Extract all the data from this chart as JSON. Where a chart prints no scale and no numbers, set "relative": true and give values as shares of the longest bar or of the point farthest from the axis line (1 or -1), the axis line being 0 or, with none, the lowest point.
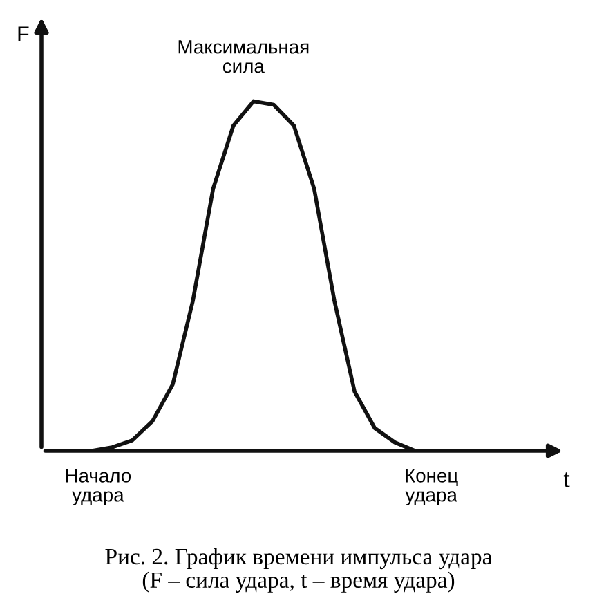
{
  "chart_data": {
    "type": "line",
    "relative": true,
    "xlabel": "t",
    "ylabel": "F",
    "color": "#111111",
    "grid": false,
    "legend": false,
    "marker": "none",
    "line_style": "solid",
    "categories": [
      null,
      null,
      null,
      null,
      null,
      null,
      null,
      null,
      null,
      null,
      null,
      null,
      null,
      null,
      null,
      null,
      null,
      null,
      null,
      null,
      null,
      null,
      null,
      null,
      null,
      null
    ],
    "values": [
      null,
      null,
      0,
      0.01,
      0.03,
      0.085,
      0.19,
      0.43,
      0.75,
      0.93,
      1.0,
      0.99,
      0.93,
      0.75,
      0.43,
      0.17,
      0.065,
      0.024,
      0,
      null,
      null,
      null,
      null,
      null,
      null,
      null
    ],
    "annotations": [
      "Максимальная\nсила",
      "Начало\nудара",
      "Конец\nудара",
      "Рис. 2. График времени импульса удара\n(F – сила удара, t – время удара)"
    ]
  }
}
